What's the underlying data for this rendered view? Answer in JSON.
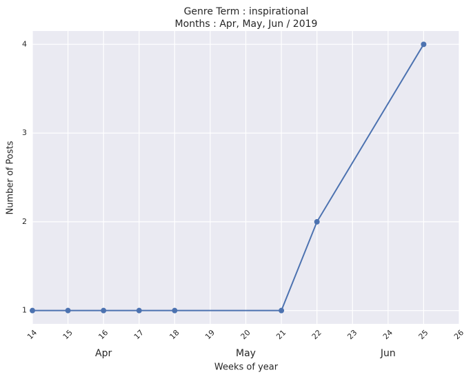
{
  "chart_data": {
    "type": "line",
    "title": "Genre Term : inspirational",
    "subtitle": "Months : Apr, May, Jun / 2019",
    "x_label": "Weeks of year",
    "y_label": "Number of Posts",
    "x": [
      14,
      15,
      16,
      17,
      18,
      21,
      22,
      25
    ],
    "values": [
      1,
      1,
      1,
      1,
      1,
      1,
      2,
      4
    ],
    "color": "#4c72b0",
    "xlim": [
      14,
      26
    ],
    "xticks": [
      14,
      15,
      16,
      17,
      18,
      19,
      20,
      21,
      22,
      23,
      24,
      25,
      26
    ],
    "month_ticks": [
      {
        "value": 16,
        "label": "Apr"
      },
      {
        "value": 20,
        "label": "May"
      },
      {
        "value": 24,
        "label": "Jun"
      }
    ],
    "ylim": [
      0.85,
      4.15
    ],
    "yticks": [
      1,
      2,
      3,
      4
    ],
    "grid": true
  }
}
